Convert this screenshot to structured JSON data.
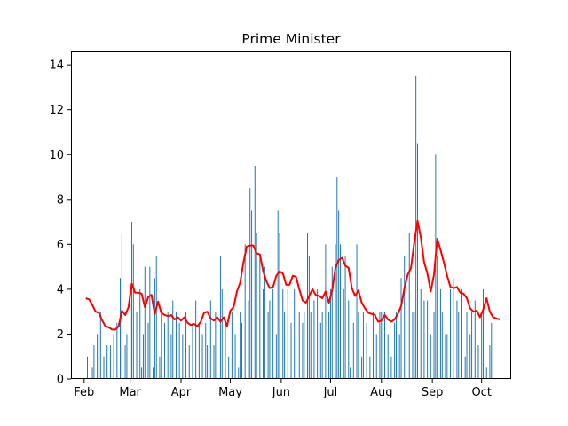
{
  "chart_data": {
    "type": "bar",
    "title": "Prime Minister",
    "xlabel": "",
    "ylabel": "",
    "ylim": [
      0,
      14.6
    ],
    "yticks": [
      0,
      2,
      4,
      6,
      8,
      10,
      12,
      14
    ],
    "x_axis": {
      "start_date": "2021-01-24",
      "end_date": "2021-10-19",
      "ticks": [
        {
          "date": "2021-02-01",
          "label": "Feb"
        },
        {
          "date": "2021-03-01",
          "label": "Mar"
        },
        {
          "date": "2021-04-01",
          "label": "Apr"
        },
        {
          "date": "2021-05-01",
          "label": "May"
        },
        {
          "date": "2021-06-01",
          "label": "Jun"
        },
        {
          "date": "2021-07-01",
          "label": "Jul"
        },
        {
          "date": "2021-08-01",
          "label": "Aug"
        },
        {
          "date": "2021-09-01",
          "label": "Sep"
        },
        {
          "date": "2021-10-01",
          "label": "Oct"
        }
      ]
    },
    "colors": {
      "bars": "#1f77b4",
      "line": "#ff0000"
    },
    "series": [
      {
        "name": "",
        "type": "bar",
        "color": "#1f77b4",
        "points": [
          [
            "2021-02-03",
            1
          ],
          [
            "2021-02-06",
            0.5
          ],
          [
            "2021-02-07",
            1.5
          ],
          [
            "2021-02-09",
            2
          ],
          [
            "2021-02-10",
            2
          ],
          [
            "2021-02-11",
            3
          ],
          [
            "2021-02-13",
            1
          ],
          [
            "2021-02-15",
            1.5
          ],
          [
            "2021-02-17",
            1.5
          ],
          [
            "2021-02-19",
            2
          ],
          [
            "2021-02-21",
            2.5
          ],
          [
            "2021-02-23",
            4.5
          ],
          [
            "2021-02-24",
            6.5
          ],
          [
            "2021-02-26",
            1.5
          ],
          [
            "2021-02-27",
            2
          ],
          [
            "2021-03-01",
            4
          ],
          [
            "2021-03-02",
            7
          ],
          [
            "2021-03-03",
            6
          ],
          [
            "2021-03-05",
            3
          ],
          [
            "2021-03-07",
            4
          ],
          [
            "2021-03-08",
            0.5
          ],
          [
            "2021-03-09",
            2
          ],
          [
            "2021-03-10",
            5
          ],
          [
            "2021-03-12",
            2.5
          ],
          [
            "2021-03-13",
            5
          ],
          [
            "2021-03-15",
            0.5
          ],
          [
            "2021-03-16",
            4.5
          ],
          [
            "2021-03-17",
            5.5
          ],
          [
            "2021-03-19",
            1
          ],
          [
            "2021-03-20",
            3
          ],
          [
            "2021-03-22",
            2.5
          ],
          [
            "2021-03-24",
            3
          ],
          [
            "2021-03-26",
            2
          ],
          [
            "2021-03-27",
            3.5
          ],
          [
            "2021-03-29",
            3
          ],
          [
            "2021-03-31",
            2.5
          ],
          [
            "2021-04-02",
            2
          ],
          [
            "2021-04-04",
            3
          ],
          [
            "2021-04-06",
            1.5
          ],
          [
            "2021-04-08",
            2.5
          ],
          [
            "2021-04-10",
            3.5
          ],
          [
            "2021-04-12",
            2.5
          ],
          [
            "2021-04-14",
            2
          ],
          [
            "2021-04-16",
            2.5
          ],
          [
            "2021-04-17",
            1.5
          ],
          [
            "2021-04-19",
            3.5
          ],
          [
            "2021-04-21",
            1.5
          ],
          [
            "2021-04-22",
            3
          ],
          [
            "2021-04-25",
            5.5
          ],
          [
            "2021-04-26",
            4
          ],
          [
            "2021-04-28",
            2.5
          ],
          [
            "2021-04-30",
            1
          ],
          [
            "2021-05-02",
            3
          ],
          [
            "2021-05-04",
            2
          ],
          [
            "2021-05-06",
            0.5
          ],
          [
            "2021-05-07",
            3
          ],
          [
            "2021-05-08",
            2.5
          ],
          [
            "2021-05-10",
            6
          ],
          [
            "2021-05-12",
            3.5
          ],
          [
            "2021-05-13",
            8.5
          ],
          [
            "2021-05-14",
            7.5
          ],
          [
            "2021-05-16",
            9.5
          ],
          [
            "2021-05-17",
            6.5
          ],
          [
            "2021-05-19",
            5.5
          ],
          [
            "2021-05-21",
            4
          ],
          [
            "2021-05-22",
            5
          ],
          [
            "2021-05-24",
            3
          ],
          [
            "2021-05-25",
            3.5
          ],
          [
            "2021-05-27",
            4
          ],
          [
            "2021-05-29",
            2
          ],
          [
            "2021-05-30",
            7.5
          ],
          [
            "2021-05-31",
            6.5
          ],
          [
            "2021-06-02",
            4
          ],
          [
            "2021-06-03",
            3
          ],
          [
            "2021-06-05",
            4
          ],
          [
            "2021-06-07",
            2.5
          ],
          [
            "2021-06-09",
            4
          ],
          [
            "2021-06-10",
            2
          ],
          [
            "2021-06-12",
            3
          ],
          [
            "2021-06-14",
            2.5
          ],
          [
            "2021-06-15",
            3
          ],
          [
            "2021-06-17",
            6.5
          ],
          [
            "2021-06-18",
            5.5
          ],
          [
            "2021-06-19",
            3
          ],
          [
            "2021-06-21",
            3.5
          ],
          [
            "2021-06-23",
            4
          ],
          [
            "2021-06-25",
            2.5
          ],
          [
            "2021-06-26",
            3
          ],
          [
            "2021-06-28",
            6
          ],
          [
            "2021-06-30",
            3
          ],
          [
            "2021-07-01",
            4
          ],
          [
            "2021-07-02",
            5
          ],
          [
            "2021-07-04",
            6
          ],
          [
            "2021-07-05",
            9
          ],
          [
            "2021-07-06",
            7.5
          ],
          [
            "2021-07-07",
            6
          ],
          [
            "2021-07-09",
            4
          ],
          [
            "2021-07-10",
            5.5
          ],
          [
            "2021-07-12",
            3.5
          ],
          [
            "2021-07-13",
            0.5
          ],
          [
            "2021-07-15",
            2.5
          ],
          [
            "2021-07-17",
            6
          ],
          [
            "2021-07-18",
            3
          ],
          [
            "2021-07-20",
            1
          ],
          [
            "2021-07-21",
            3
          ],
          [
            "2021-07-23",
            2.5
          ],
          [
            "2021-07-25",
            1
          ],
          [
            "2021-07-27",
            3
          ],
          [
            "2021-07-29",
            2
          ],
          [
            "2021-07-31",
            3
          ],
          [
            "2021-08-01",
            3
          ],
          [
            "2021-08-03",
            3
          ],
          [
            "2021-08-05",
            2
          ],
          [
            "2021-08-07",
            1
          ],
          [
            "2021-08-09",
            2.5
          ],
          [
            "2021-08-10",
            3
          ],
          [
            "2021-08-12",
            2
          ],
          [
            "2021-08-13",
            4.5
          ],
          [
            "2021-08-15",
            5.5
          ],
          [
            "2021-08-16",
            4
          ],
          [
            "2021-08-18",
            6.5
          ],
          [
            "2021-08-20",
            3
          ],
          [
            "2021-08-21",
            3
          ],
          [
            "2021-08-22",
            13.5
          ],
          [
            "2021-08-23",
            10.5
          ],
          [
            "2021-08-25",
            4
          ],
          [
            "2021-08-27",
            3.5
          ],
          [
            "2021-08-29",
            3.5
          ],
          [
            "2021-08-31",
            2
          ],
          [
            "2021-09-02",
            3
          ],
          [
            "2021-09-03",
            10
          ],
          [
            "2021-09-04",
            5.5
          ],
          [
            "2021-09-06",
            4
          ],
          [
            "2021-09-07",
            3
          ],
          [
            "2021-09-09",
            2
          ],
          [
            "2021-09-10",
            2
          ],
          [
            "2021-09-12",
            4
          ],
          [
            "2021-09-14",
            4.5
          ],
          [
            "2021-09-16",
            3.5
          ],
          [
            "2021-09-17",
            3
          ],
          [
            "2021-09-19",
            4
          ],
          [
            "2021-09-21",
            1
          ],
          [
            "2021-09-22",
            3
          ],
          [
            "2021-09-24",
            2
          ],
          [
            "2021-09-25",
            3
          ],
          [
            "2021-09-27",
            3.5
          ],
          [
            "2021-09-29",
            1.5
          ],
          [
            "2021-10-01",
            3
          ],
          [
            "2021-10-02",
            4
          ],
          [
            "2021-10-04",
            0.5
          ],
          [
            "2021-10-06",
            1.5
          ],
          [
            "2021-10-07",
            2.5
          ]
        ]
      },
      {
        "name": "",
        "type": "line",
        "color": "#ff0000",
        "points": [
          [
            "2021-02-02",
            3.6
          ],
          [
            "2021-02-04",
            3.55
          ],
          [
            "2021-02-06",
            3.3
          ],
          [
            "2021-02-08",
            3.0
          ],
          [
            "2021-02-10",
            2.95
          ],
          [
            "2021-02-12",
            2.6
          ],
          [
            "2021-02-14",
            2.35
          ],
          [
            "2021-02-16",
            2.3
          ],
          [
            "2021-02-18",
            2.2
          ],
          [
            "2021-02-20",
            2.2
          ],
          [
            "2021-02-22",
            2.35
          ],
          [
            "2021-02-24",
            3.05
          ],
          [
            "2021-02-26",
            2.85
          ],
          [
            "2021-02-28",
            3.2
          ],
          [
            "2021-03-02",
            4.25
          ],
          [
            "2021-03-04",
            3.85
          ],
          [
            "2021-03-06",
            3.85
          ],
          [
            "2021-03-08",
            3.8
          ],
          [
            "2021-03-10",
            3.2
          ],
          [
            "2021-03-12",
            3.65
          ],
          [
            "2021-03-14",
            3.75
          ],
          [
            "2021-03-16",
            2.9
          ],
          [
            "2021-03-18",
            3.45
          ],
          [
            "2021-03-20",
            2.95
          ],
          [
            "2021-03-22",
            2.85
          ],
          [
            "2021-03-24",
            2.8
          ],
          [
            "2021-03-26",
            2.85
          ],
          [
            "2021-03-28",
            2.65
          ],
          [
            "2021-03-30",
            2.75
          ],
          [
            "2021-04-01",
            2.6
          ],
          [
            "2021-04-03",
            2.75
          ],
          [
            "2021-04-05",
            2.5
          ],
          [
            "2021-04-07",
            2.4
          ],
          [
            "2021-04-09",
            2.45
          ],
          [
            "2021-04-11",
            2.35
          ],
          [
            "2021-04-13",
            2.55
          ],
          [
            "2021-04-15",
            2.95
          ],
          [
            "2021-04-17",
            3.0
          ],
          [
            "2021-04-19",
            2.7
          ],
          [
            "2021-04-21",
            2.6
          ],
          [
            "2021-04-23",
            2.75
          ],
          [
            "2021-04-25",
            2.55
          ],
          [
            "2021-04-27",
            2.75
          ],
          [
            "2021-04-29",
            2.35
          ],
          [
            "2021-05-01",
            3.05
          ],
          [
            "2021-05-03",
            3.2
          ],
          [
            "2021-05-05",
            3.9
          ],
          [
            "2021-05-07",
            4.3
          ],
          [
            "2021-05-09",
            5.2
          ],
          [
            "2021-05-11",
            5.9
          ],
          [
            "2021-05-13",
            5.95
          ],
          [
            "2021-05-15",
            5.95
          ],
          [
            "2021-05-17",
            5.6
          ],
          [
            "2021-05-19",
            5.55
          ],
          [
            "2021-05-21",
            4.8
          ],
          [
            "2021-05-23",
            4.35
          ],
          [
            "2021-05-25",
            4.05
          ],
          [
            "2021-05-27",
            4.1
          ],
          [
            "2021-05-29",
            4.6
          ],
          [
            "2021-05-31",
            4.8
          ],
          [
            "2021-06-02",
            4.7
          ],
          [
            "2021-06-04",
            4.2
          ],
          [
            "2021-06-06",
            4.2
          ],
          [
            "2021-06-08",
            4.6
          ],
          [
            "2021-06-10",
            4.55
          ],
          [
            "2021-06-12",
            4.0
          ],
          [
            "2021-06-14",
            3.5
          ],
          [
            "2021-06-16",
            3.4
          ],
          [
            "2021-06-18",
            3.7
          ],
          [
            "2021-06-20",
            4.0
          ],
          [
            "2021-06-22",
            3.75
          ],
          [
            "2021-06-24",
            3.7
          ],
          [
            "2021-06-26",
            3.6
          ],
          [
            "2021-06-28",
            3.9
          ],
          [
            "2021-06-30",
            3.4
          ],
          [
            "2021-07-02",
            3.95
          ],
          [
            "2021-07-04",
            4.95
          ],
          [
            "2021-07-06",
            5.3
          ],
          [
            "2021-07-08",
            5.4
          ],
          [
            "2021-07-10",
            5.05
          ],
          [
            "2021-07-12",
            4.95
          ],
          [
            "2021-07-14",
            4.05
          ],
          [
            "2021-07-16",
            3.7
          ],
          [
            "2021-07-18",
            3.95
          ],
          [
            "2021-07-20",
            3.4
          ],
          [
            "2021-07-22",
            3.15
          ],
          [
            "2021-07-24",
            2.95
          ],
          [
            "2021-07-26",
            2.9
          ],
          [
            "2021-07-28",
            2.85
          ],
          [
            "2021-07-30",
            2.55
          ],
          [
            "2021-08-01",
            2.6
          ],
          [
            "2021-08-03",
            2.85
          ],
          [
            "2021-08-05",
            2.65
          ],
          [
            "2021-08-07",
            2.55
          ],
          [
            "2021-08-09",
            2.65
          ],
          [
            "2021-08-11",
            2.9
          ],
          [
            "2021-08-13",
            3.25
          ],
          [
            "2021-08-15",
            4.05
          ],
          [
            "2021-08-17",
            4.65
          ],
          [
            "2021-08-19",
            4.95
          ],
          [
            "2021-08-21",
            6.1
          ],
          [
            "2021-08-23",
            7.05
          ],
          [
            "2021-08-25",
            6.3
          ],
          [
            "2021-08-27",
            5.2
          ],
          [
            "2021-08-29",
            4.7
          ],
          [
            "2021-08-31",
            3.9
          ],
          [
            "2021-09-02",
            4.65
          ],
          [
            "2021-09-04",
            6.25
          ],
          [
            "2021-09-06",
            5.75
          ],
          [
            "2021-09-08",
            5.2
          ],
          [
            "2021-09-10",
            4.6
          ],
          [
            "2021-09-12",
            4.1
          ],
          [
            "2021-09-14",
            4.05
          ],
          [
            "2021-09-16",
            4.1
          ],
          [
            "2021-09-18",
            3.85
          ],
          [
            "2021-09-20",
            3.8
          ],
          [
            "2021-09-22",
            3.6
          ],
          [
            "2021-09-24",
            3.15
          ],
          [
            "2021-09-26",
            3.0
          ],
          [
            "2021-09-28",
            3.05
          ],
          [
            "2021-09-30",
            2.75
          ],
          [
            "2021-10-02",
            3.1
          ],
          [
            "2021-10-04",
            3.6
          ],
          [
            "2021-10-06",
            3.0
          ],
          [
            "2021-10-08",
            2.75
          ],
          [
            "2021-10-10",
            2.7
          ],
          [
            "2021-10-12",
            2.65
          ]
        ]
      }
    ]
  }
}
